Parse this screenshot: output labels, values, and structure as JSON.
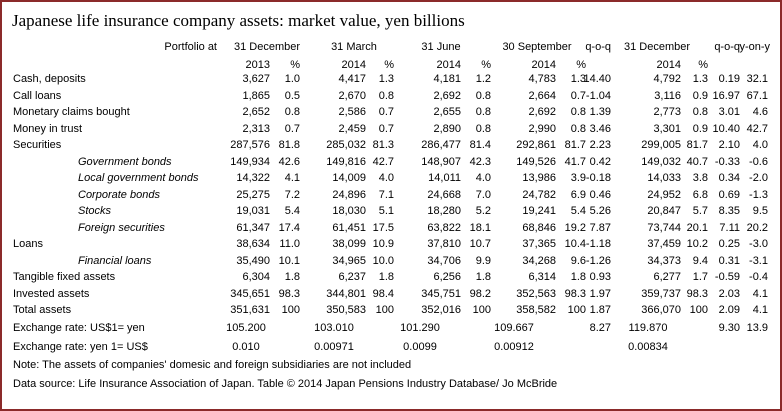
{
  "title": "Japanese life insurance company assets: market value, yen billions",
  "header1": [
    "Portfolio at",
    "31 December",
    "31 March",
    "31 June",
    "30 September",
    "q-o-q",
    "31 December",
    "q-o-q",
    "y-on-y"
  ],
  "header2": [
    "2013",
    "%",
    "2014",
    "%",
    "2014",
    "%",
    "2014",
    "%",
    "2014",
    "%"
  ],
  "rows": [
    {
      "label": "Cash, deposits",
      "indent": false,
      "italic": false,
      "values": [
        "3,627",
        "1.0",
        "4,417",
        "1.3",
        "4,181",
        "1.2",
        "4,783",
        "1.3",
        "14.40",
        "4,792",
        "1.3",
        "0.19",
        "32.1"
      ]
    },
    {
      "label": "Call loans",
      "indent": false,
      "italic": false,
      "values": [
        "1,865",
        "0.5",
        "2,670",
        "0.8",
        "2,692",
        "0.8",
        "2,664",
        "0.7",
        "-1.04",
        "3,116",
        "0.9",
        "16.97",
        "67.1"
      ]
    },
    {
      "label": "Monetary claims bought",
      "indent": false,
      "italic": false,
      "values": [
        "2,652",
        "0.8",
        "2,586",
        "0.7",
        "2,655",
        "0.8",
        "2,692",
        "0.8",
        "1.39",
        "2,773",
        "0.8",
        "3.01",
        "4.6"
      ]
    },
    {
      "label": "Money in trust",
      "indent": false,
      "italic": false,
      "values": [
        "2,313",
        "0.7",
        "2,459",
        "0.7",
        "2,890",
        "0.8",
        "2,990",
        "0.8",
        "3.46",
        "3,301",
        "0.9",
        "10.40",
        "42.7"
      ]
    },
    {
      "label": "Securities",
      "indent": false,
      "italic": false,
      "values": [
        "287,576",
        "81.8",
        "285,032",
        "81.3",
        "286,477",
        "81.4",
        "292,861",
        "81.7",
        "2.23",
        "299,005",
        "81.7",
        "2.10",
        "4.0"
      ]
    },
    {
      "label": "Government bonds",
      "indent": true,
      "italic": true,
      "values": [
        "149,934",
        "42.6",
        "149,816",
        "42.7",
        "148,907",
        "42.3",
        "149,526",
        "41.7",
        "0.42",
        "149,032",
        "40.7",
        "-0.33",
        "-0.6"
      ]
    },
    {
      "label": "Local government bonds",
      "indent": true,
      "italic": true,
      "values": [
        "14,322",
        "4.1",
        "14,009",
        "4.0",
        "14,011",
        "4.0",
        "13,986",
        "3.9",
        "-0.18",
        "14,033",
        "3.8",
        "0.34",
        "-2.0"
      ]
    },
    {
      "label": "Corporate bonds",
      "indent": true,
      "italic": true,
      "values": [
        "25,275",
        "7.2",
        "24,896",
        "7.1",
        "24,668",
        "7.0",
        "24,782",
        "6.9",
        "0.46",
        "24,952",
        "6.8",
        "0.69",
        "-1.3"
      ]
    },
    {
      "label": "Stocks",
      "indent": true,
      "italic": true,
      "values": [
        "19,031",
        "5.4",
        "18,030",
        "5.1",
        "18,280",
        "5.2",
        "19,241",
        "5.4",
        "5.26",
        "20,847",
        "5.7",
        "8.35",
        "9.5"
      ]
    },
    {
      "label": "Foreign securities",
      "indent": true,
      "italic": true,
      "values": [
        "61,347",
        "17.4",
        "61,451",
        "17.5",
        "63,822",
        "18.1",
        "68,846",
        "19.2",
        "7.87",
        "73,744",
        "20.1",
        "7.11",
        "20.2"
      ]
    },
    {
      "label": "Loans",
      "indent": false,
      "italic": false,
      "values": [
        "38,634",
        "11.0",
        "38,099",
        "10.9",
        "37,810",
        "10.7",
        "37,365",
        "10.4",
        "-1.18",
        "37,459",
        "10.2",
        "0.25",
        "-3.0"
      ]
    },
    {
      "label": "Financial loans",
      "indent": true,
      "italic": true,
      "values": [
        "35,490",
        "10.1",
        "34,965",
        "10.0",
        "34,706",
        "9.9",
        "34,268",
        "9.6",
        "-1.26",
        "34,373",
        "9.4",
        "0.31",
        "-3.1"
      ]
    },
    {
      "label": "Tangible fixed assets",
      "indent": false,
      "italic": false,
      "values": [
        "6,304",
        "1.8",
        "6,237",
        "1.8",
        "6,256",
        "1.8",
        "6,314",
        "1.8",
        "0.93",
        "6,277",
        "1.7",
        "-0.59",
        "-0.4"
      ]
    },
    {
      "label": "Invested assets",
      "indent": false,
      "italic": false,
      "values": [
        "345,651",
        "98.3",
        "344,801",
        "98.4",
        "345,751",
        "98.2",
        "352,563",
        "98.3",
        "1.97",
        "359,737",
        "98.3",
        "2.03",
        "4.1"
      ]
    },
    {
      "label": "Total assets",
      "indent": false,
      "italic": false,
      "values": [
        "351,631",
        "100",
        "350,583",
        "100",
        "352,016",
        "100",
        "358,582",
        "100",
        "1.87",
        "366,070",
        "100",
        "2.09",
        "4.1"
      ]
    }
  ],
  "exchange1": {
    "label": "Exchange rate: US$1= yen",
    "values": [
      "105.200",
      "103.010",
      "101.290",
      "109.667",
      "8.27",
      "119.870",
      "9.30",
      "13.9"
    ]
  },
  "exchange2": {
    "label": "Exchange rate: yen 1= US$",
    "values": [
      "0.010",
      "0.00971",
      "0.0099",
      "0.00912",
      "0.00834"
    ]
  },
  "note": "Note: The assets of companies' domesic and foreign subsidiaries are not included",
  "source": "Data source: Life Insurance Association of Japan. Table © 2014 Japan Pensions Industry Database/ Jo McBride",
  "colors": {
    "border": "#8b2a2a"
  }
}
